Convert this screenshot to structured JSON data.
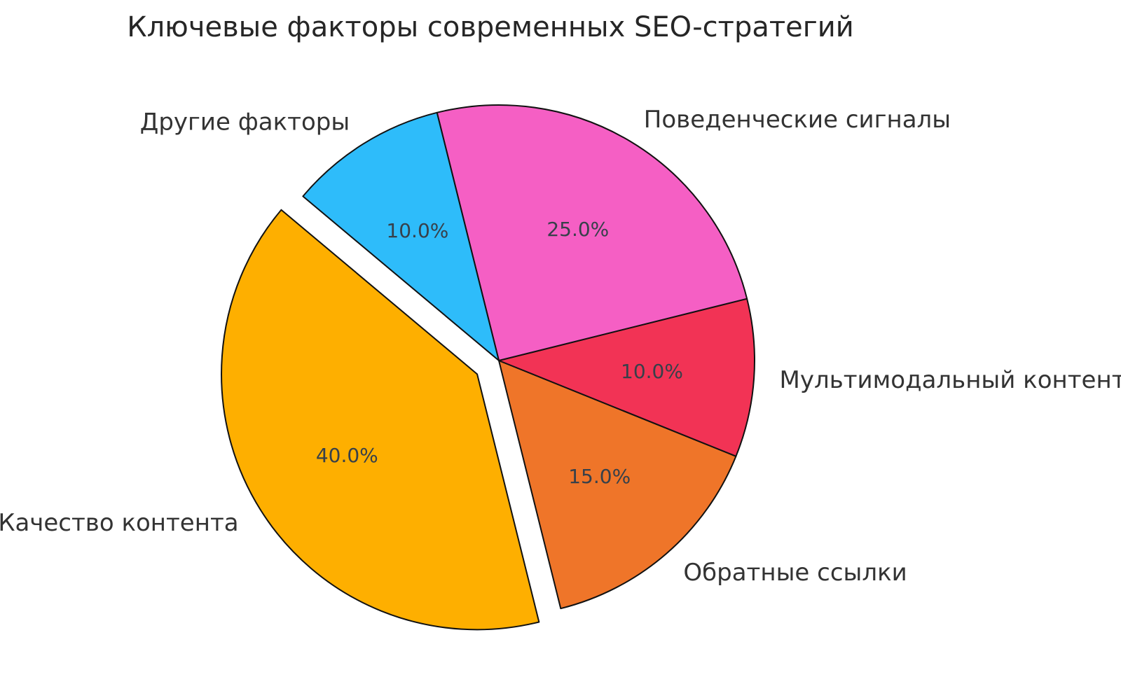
{
  "chart_data": {
    "type": "pie",
    "title": "Ключевые факторы современных SEO-стратегий",
    "legend": "none",
    "direction": "counterclockwise",
    "start_angle": 140,
    "label_distance": 1.1,
    "pct_distance": 0.6,
    "edge_color": "#111111",
    "edge_width": 2,
    "background": "#ffffff",
    "title_color": "#262626",
    "label_color": "#333333",
    "pct_color": "#37404a",
    "slices": [
      {
        "label": "Качество контента",
        "value": 40.0,
        "pct_label": "40.0%",
        "color": "#FEAF00",
        "explode": 0.1
      },
      {
        "label": "Обратные ссылки",
        "value": 15.0,
        "pct_label": "15.0%",
        "color": "#EF7529",
        "explode": 0
      },
      {
        "label": "Мультимодальный контент",
        "value": 10.0,
        "pct_label": "10.0%",
        "color": "#F23355",
        "explode": 0
      },
      {
        "label": "Поведенческие сигналы",
        "value": 25.0,
        "pct_label": "25.0%",
        "color": "#F55FC4",
        "explode": 0
      },
      {
        "label": "Другие факторы",
        "value": 10.0,
        "pct_label": "10.0%",
        "color": "#2EBCFA",
        "explode": 0
      }
    ]
  }
}
